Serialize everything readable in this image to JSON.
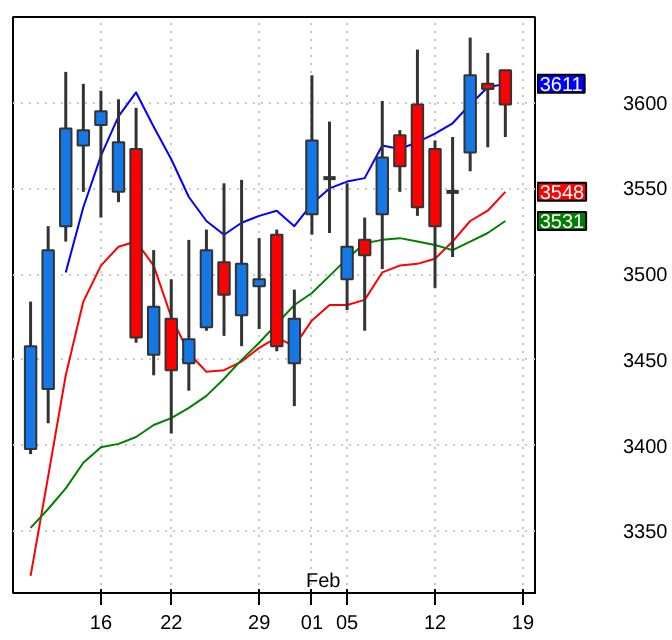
{
  "chart_data": {
    "type": "candlestick",
    "categories": [
      null,
      null,
      null,
      null,
      "16",
      null,
      null,
      null,
      "22",
      null,
      null,
      null,
      null,
      "29",
      null,
      null,
      "01",
      null,
      "05",
      null,
      null,
      null,
      null,
      "12",
      null,
      null,
      null,
      null,
      "19"
    ],
    "ohlc": [
      [
        3398,
        3484,
        3395,
        3458
      ],
      [
        3433,
        3528,
        3413,
        3514
      ],
      [
        3528,
        3618,
        3519,
        3585
      ],
      [
        3575,
        3611,
        3548,
        3584
      ],
      [
        3587,
        3607,
        3533,
        3595
      ],
      [
        3548,
        3602,
        3542,
        3577
      ],
      [
        3573,
        3597,
        3460,
        3463
      ],
      [
        3453,
        3514,
        3441,
        3481
      ],
      [
        3474,
        3497,
        3407,
        3444
      ],
      [
        3448,
        3520,
        3432,
        3462
      ],
      [
        3469,
        3526,
        3467,
        3514
      ],
      [
        3507,
        3553,
        3464,
        3488
      ],
      [
        3476,
        3555,
        3458,
        3506
      ],
      [
        3493,
        3521,
        3468,
        3497
      ],
      [
        3523,
        3526,
        3455,
        3458
      ],
      [
        3448,
        3491,
        3423,
        3474
      ],
      [
        3535,
        3616,
        3523,
        3578
      ],
      [
        3556,
        3589,
        3524,
        3556
      ],
      [
        3497,
        3553,
        3479,
        3516
      ],
      [
        3520,
        3533,
        3467,
        3511
      ],
      [
        3535,
        3601,
        3503,
        3568
      ],
      [
        3581,
        3584,
        3548,
        3563
      ],
      [
        3599,
        3631,
        3534,
        3539
      ],
      [
        3573,
        3578,
        3492,
        3528
      ],
      [
        3548,
        3580,
        3510,
        3548
      ],
      [
        3571,
        3638,
        3560,
        3616
      ],
      [
        3611,
        3629,
        3574,
        3608
      ],
      [
        3619,
        3619,
        3580,
        3599
      ],
      null
    ],
    "colors": [
      "#1478e6",
      "#1478e6",
      "#1478e6",
      "#1478e6",
      "#1478e6",
      "#1478e6",
      "#ff0000",
      "#1478e6",
      "#ff0000",
      "#1478e6",
      "#1478e6",
      "#ff0000",
      "#1478e6",
      "#1478e6",
      "#ff0000",
      "#1478e6",
      "#1478e6",
      "#333333",
      "#1478e6",
      "#ff0000",
      "#1478e6",
      "#ff0000",
      "#ff0000",
      "#ff0000",
      "#333333",
      "#1478e6",
      "#ff0000",
      "#ff0000",
      null
    ],
    "series": [
      {
        "type": "line",
        "color": "#0000ff",
        "values": [
          null,
          null,
          3501,
          3539,
          3569,
          3592,
          3606,
          3586,
          3567,
          3545,
          3531,
          3523,
          3530,
          3534,
          3537,
          3528,
          3541,
          3550,
          3554,
          3556,
          3575,
          3573,
          3577,
          3582,
          3588,
          3599,
          3609,
          3611,
          null
        ],
        "value_labels": [
          null,
          null,
          null,
          null,
          null,
          null,
          null,
          null,
          null,
          null,
          null,
          null,
          null,
          null,
          null,
          null,
          null,
          null,
          null,
          null,
          null,
          null,
          null,
          null,
          null,
          null,
          null,
          "3611",
          null
        ]
      },
      {
        "type": "line",
        "color": "#ff0000",
        "values": [
          3324,
          3382,
          3441,
          3484,
          3505,
          3516,
          3519,
          3505,
          3475,
          3454,
          3443,
          3444,
          3449,
          3457,
          3463,
          3458,
          3473,
          3482,
          3482,
          3485,
          3501,
          3505,
          3506,
          3509,
          3519,
          3531,
          3537,
          3548,
          null
        ],
        "value_labels": [
          null,
          null,
          null,
          null,
          null,
          null,
          null,
          null,
          null,
          null,
          null,
          null,
          null,
          null,
          null,
          null,
          null,
          null,
          null,
          null,
          null,
          null,
          null,
          null,
          null,
          null,
          null,
          "3548",
          null
        ]
      },
      {
        "type": "line",
        "color": "#008000",
        "values": [
          3352,
          3363,
          3375,
          3390,
          3399,
          3401,
          3405,
          3412,
          3416,
          3422,
          3429,
          3439,
          3450,
          3460,
          3471,
          3482,
          3489,
          3499,
          3509,
          3518,
          3520,
          3521,
          3519,
          3517,
          3514,
          3519,
          3524,
          3531,
          null
        ],
        "value_labels": [
          null,
          null,
          null,
          null,
          null,
          null,
          null,
          null,
          null,
          null,
          null,
          null,
          null,
          null,
          null,
          null,
          null,
          null,
          null,
          null,
          null,
          null,
          null,
          null,
          null,
          null,
          null,
          "3531",
          null
        ]
      }
    ],
    "ylim": [
      3314,
      3650
    ],
    "yticks": [
      3350,
      3400,
      3450,
      3500,
      3550,
      3600
    ],
    "grid": true,
    "annotations": [
      "Feb"
    ]
  }
}
